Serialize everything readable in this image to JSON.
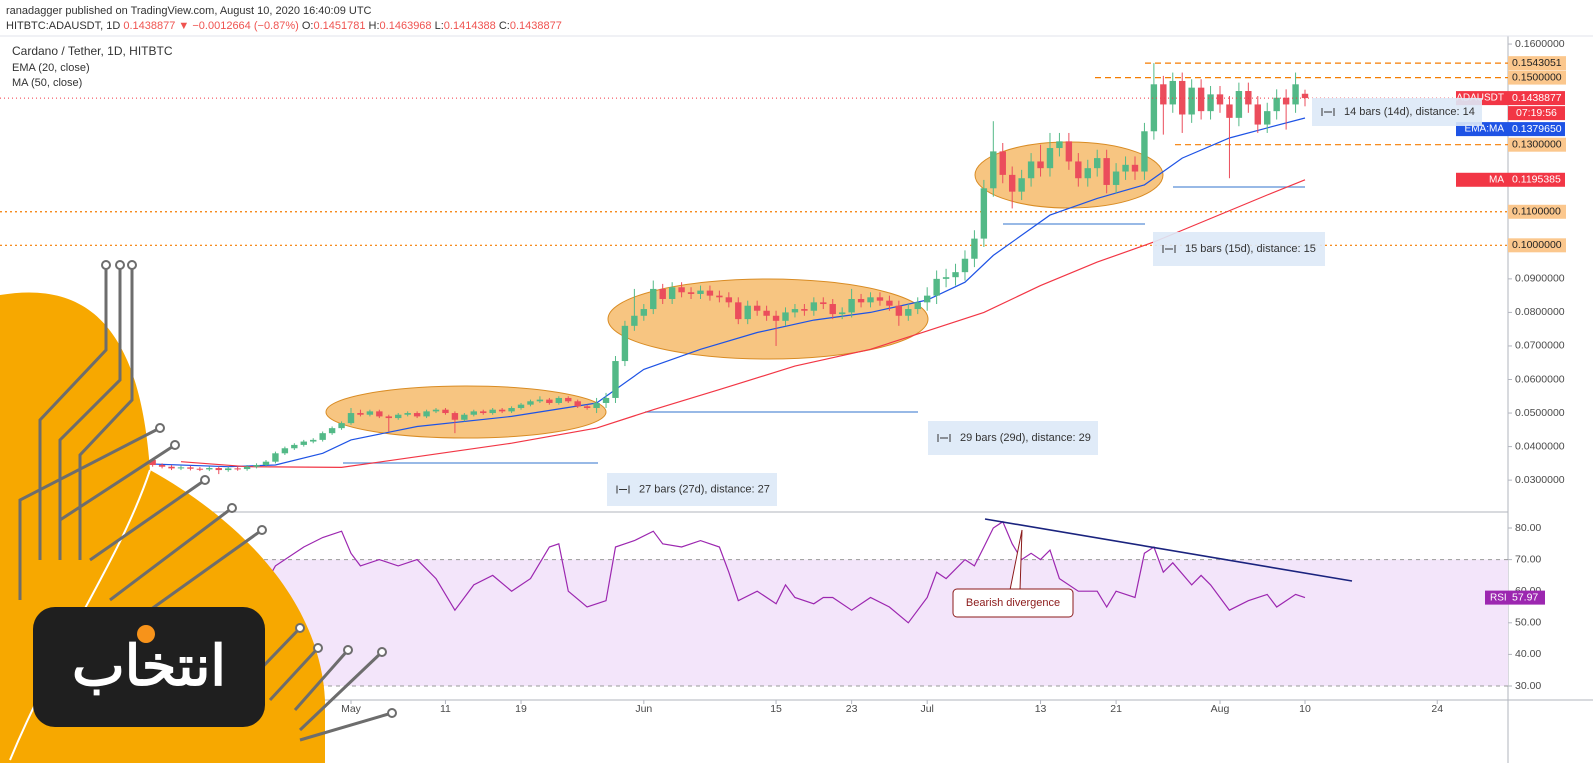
{
  "header": {
    "line1": "ranadagger published on TradingView.com, August 10, 2020 16:40:09 UTC",
    "symbol": "HITBTC:ADAUSDT, 1D",
    "last": "0.1438877",
    "arrow": "▼",
    "change": "−0.0012664 (−0.87%)",
    "ohlc": [
      {
        "label": "O:",
        "value": "0.1451781"
      },
      {
        "label": "H:",
        "value": "0.1463968"
      },
      {
        "label": "L:",
        "value": "0.1414388"
      },
      {
        "label": "C:",
        "value": "0.1438877"
      }
    ]
  },
  "watermark": "انتخاب",
  "chart_data": {
    "type": "candlestick",
    "title": "Cardano / Tether, 1D, HITBTC",
    "up_color": "#53b987",
    "down_color": "#eb4d5c",
    "open": [
      0.037,
      0.0365,
      0.036,
      0.0345,
      0.034,
      0.0335,
      0.0338,
      0.0334,
      0.0332,
      0.0336,
      0.033,
      0.0335,
      0.0333,
      0.034,
      0.0345,
      0.0355,
      0.038,
      0.0395,
      0.0405,
      0.0415,
      0.042,
      0.044,
      0.0455,
      0.047,
      0.05,
      0.0495,
      0.0505,
      0.049,
      0.0485,
      0.0495,
      0.05,
      0.049,
      0.0505,
      0.051,
      0.05,
      0.048,
      0.0495,
      0.0505,
      0.05,
      0.051,
      0.0505,
      0.0515,
      0.0525,
      0.0535,
      0.054,
      0.053,
      0.0545,
      0.0535,
      0.052,
      0.0515,
      0.053,
      0.0545,
      0.0655,
      0.076,
      0.079,
      0.081,
      0.087,
      0.084,
      0.0875,
      0.086,
      0.0855,
      0.0865,
      0.085,
      0.0845,
      0.083,
      0.078,
      0.082,
      0.0805,
      0.079,
      0.0775,
      0.08,
      0.081,
      0.0805,
      0.083,
      0.0825,
      0.0795,
      0.08,
      0.084,
      0.083,
      0.0845,
      0.0835,
      0.082,
      0.079,
      0.081,
      0.083,
      0.085,
      0.09,
      0.0905,
      0.092,
      0.096,
      0.102,
      0.117,
      0.128,
      0.121,
      0.116,
      0.12,
      0.125,
      0.123,
      0.129,
      0.131,
      0.125,
      0.12,
      0.123,
      0.126,
      0.118,
      0.122,
      0.124,
      0.122,
      0.134,
      0.148,
      0.142,
      0.149,
      0.139,
      0.147,
      0.14,
      0.145,
      0.142,
      0.138,
      0.146,
      0.142,
      0.136,
      0.14,
      0.144,
      0.142,
      0.1451781
    ],
    "high": [
      0.0375,
      0.037,
      0.0365,
      0.035,
      0.0345,
      0.0343,
      0.0343,
      0.0339,
      0.0341,
      0.0341,
      0.034,
      0.034,
      0.0345,
      0.035,
      0.036,
      0.0385,
      0.04,
      0.041,
      0.042,
      0.0425,
      0.0445,
      0.046,
      0.0475,
      0.0515,
      0.051,
      0.051,
      0.051,
      0.0495,
      0.05,
      0.0505,
      0.0505,
      0.051,
      0.0515,
      0.0515,
      0.0505,
      0.05,
      0.051,
      0.051,
      0.0515,
      0.0515,
      0.052,
      0.053,
      0.054,
      0.055,
      0.0545,
      0.055,
      0.055,
      0.054,
      0.0525,
      0.0545,
      0.056,
      0.067,
      0.0775,
      0.087,
      0.0825,
      0.0895,
      0.0885,
      0.089,
      0.089,
      0.0875,
      0.088,
      0.088,
      0.0865,
      0.086,
      0.0845,
      0.0835,
      0.0835,
      0.082,
      0.0805,
      0.0815,
      0.0825,
      0.0825,
      0.0845,
      0.0845,
      0.084,
      0.0815,
      0.087,
      0.0855,
      0.086,
      0.086,
      0.085,
      0.0835,
      0.0825,
      0.0845,
      0.0875,
      0.0925,
      0.093,
      0.0945,
      0.0985,
      0.1045,
      0.1195,
      0.137,
      0.1305,
      0.1235,
      0.1225,
      0.1275,
      0.13,
      0.1335,
      0.1335,
      0.1335,
      0.1275,
      0.1255,
      0.1285,
      0.1285,
      0.1245,
      0.1265,
      0.1265,
      0.1365,
      0.1543051,
      0.1505,
      0.1515,
      0.1515,
      0.1495,
      0.1495,
      0.1475,
      0.1475,
      0.1445,
      0.1485,
      0.1485,
      0.1445,
      0.1425,
      0.1465,
      0.1465,
      0.1515,
      0.1463968
    ],
    "low": [
      0.036,
      0.0355,
      0.034,
      0.0335,
      0.033,
      0.033,
      0.0329,
      0.0327,
      0.0327,
      0.0318,
      0.0325,
      0.0328,
      0.0328,
      0.0335,
      0.034,
      0.035,
      0.0375,
      0.039,
      0.04,
      0.041,
      0.0415,
      0.0435,
      0.045,
      0.0465,
      0.049,
      0.049,
      0.0485,
      0.0445,
      0.048,
      0.049,
      0.0485,
      0.0485,
      0.05,
      0.0495,
      0.044,
      0.0475,
      0.049,
      0.0495,
      0.0495,
      0.05,
      0.05,
      0.051,
      0.052,
      0.053,
      0.0525,
      0.0525,
      0.053,
      0.0515,
      0.051,
      0.05,
      0.0515,
      0.053,
      0.064,
      0.0745,
      0.0775,
      0.0795,
      0.0825,
      0.0825,
      0.0845,
      0.084,
      0.084,
      0.0835,
      0.083,
      0.0815,
      0.0765,
      0.0765,
      0.079,
      0.0775,
      0.07,
      0.076,
      0.0785,
      0.079,
      0.079,
      0.081,
      0.078,
      0.078,
      0.0785,
      0.0815,
      0.0815,
      0.082,
      0.0805,
      0.076,
      0.0775,
      0.0795,
      0.0805,
      0.0825,
      0.0875,
      0.088,
      0.0895,
      0.0935,
      0.0995,
      0.1145,
      0.1185,
      0.111,
      0.1135,
      0.1175,
      0.1205,
      0.1205,
      0.1265,
      0.1225,
      0.1175,
      0.1175,
      0.1205,
      0.1155,
      0.1155,
      0.1195,
      0.1195,
      0.1195,
      0.1315,
      0.133,
      0.1395,
      0.1335,
      0.1365,
      0.1375,
      0.1375,
      0.1395,
      0.12,
      0.1355,
      0.1395,
      0.1335,
      0.1335,
      0.1375,
      0.1345,
      0.1395,
      0.1414388
    ],
    "close": [
      0.0365,
      0.036,
      0.0345,
      0.034,
      0.0335,
      0.0338,
      0.0334,
      0.0332,
      0.0336,
      0.033,
      0.0335,
      0.0333,
      0.034,
      0.0345,
      0.0355,
      0.038,
      0.0395,
      0.0405,
      0.0415,
      0.042,
      0.044,
      0.0455,
      0.047,
      0.05,
      0.0495,
      0.0505,
      0.049,
      0.0485,
      0.0495,
      0.05,
      0.049,
      0.0505,
      0.051,
      0.05,
      0.048,
      0.0495,
      0.0505,
      0.05,
      0.051,
      0.0505,
      0.0515,
      0.0525,
      0.0535,
      0.054,
      0.053,
      0.0545,
      0.0535,
      0.052,
      0.0515,
      0.053,
      0.0545,
      0.0655,
      0.076,
      0.079,
      0.081,
      0.087,
      0.084,
      0.0875,
      0.086,
      0.0855,
      0.0865,
      0.085,
      0.0845,
      0.083,
      0.078,
      0.082,
      0.0805,
      0.079,
      0.0775,
      0.08,
      0.081,
      0.0805,
      0.083,
      0.0825,
      0.0795,
      0.08,
      0.084,
      0.083,
      0.0845,
      0.0835,
      0.082,
      0.079,
      0.081,
      0.083,
      0.085,
      0.09,
      0.0905,
      0.092,
      0.096,
      0.102,
      0.117,
      0.128,
      0.121,
      0.116,
      0.12,
      0.125,
      0.123,
      0.129,
      0.131,
      0.125,
      0.12,
      0.123,
      0.126,
      0.118,
      0.122,
      0.124,
      0.122,
      0.134,
      0.148,
      0.142,
      0.149,
      0.139,
      0.147,
      0.14,
      0.145,
      0.142,
      0.138,
      0.146,
      0.142,
      0.136,
      0.14,
      0.144,
      0.142,
      0.148,
      0.1438877
    ],
    "series": [
      {
        "name": "EMA (20, close)",
        "color": "#1e53e5",
        "x": [
          0,
          10,
          15,
          20,
          23,
          30,
          40,
          49,
          54,
          60,
          66,
          72,
          78,
          84,
          88,
          91,
          94,
          97,
          102,
          107,
          111,
          116,
          120,
          124
        ],
        "values": [
          0.035,
          0.034,
          0.0345,
          0.038,
          0.042,
          0.046,
          0.049,
          0.053,
          0.063,
          0.069,
          0.074,
          0.0777,
          0.08,
          0.0837,
          0.089,
          0.097,
          0.103,
          0.109,
          0.114,
          0.118,
          0.126,
          0.132,
          0.135,
          0.137965
        ]
      },
      {
        "name": "MA (50, close)",
        "color": "#f23645",
        "x": [
          5,
          12,
          22,
          30,
          40,
          49,
          55,
          62,
          70,
          78,
          84,
          90,
          96,
          102,
          108,
          114,
          120,
          124
        ],
        "values": [
          0.0355,
          0.034,
          0.0338,
          0.037,
          0.041,
          0.0455,
          0.051,
          0.057,
          0.064,
          0.069,
          0.0745,
          0.08,
          0.088,
          0.095,
          0.101,
          0.108,
          0.115,
          0.1195385
        ]
      }
    ],
    "xlim": [
      -14.16,
      145.49
    ],
    "xticks": [
      {
        "value": 23,
        "label": "May"
      },
      {
        "value": 33,
        "label": "11"
      },
      {
        "value": 41,
        "label": "19"
      },
      {
        "value": 54,
        "label": "Jun"
      },
      {
        "value": 68,
        "label": "15"
      },
      {
        "value": 76,
        "label": "23"
      },
      {
        "value": 84,
        "label": "Jul"
      },
      {
        "value": 96,
        "label": "13"
      },
      {
        "value": 104,
        "label": "21"
      },
      {
        "value": 115,
        "label": "Aug"
      },
      {
        "value": 124,
        "label": "10"
      },
      {
        "value": 138,
        "label": "24"
      }
    ],
    "ylim": [
      0.0205,
      0.1624
    ],
    "yticks": [
      {
        "value": 0.16,
        "label": "0.1600000"
      },
      {
        "value": 0.09,
        "label": "0.0900000"
      },
      {
        "value": 0.08,
        "label": "0.0800000"
      },
      {
        "value": 0.07,
        "label": "0.0700000"
      },
      {
        "value": 0.06,
        "label": "0.0600000"
      },
      {
        "value": 0.05,
        "label": "0.0500000"
      },
      {
        "value": 0.04,
        "label": "0.0400000"
      },
      {
        "value": 0.03,
        "label": "0.0300000"
      }
    ],
    "levels": [
      {
        "value": 0.1543051,
        "label": "0.1543051"
      },
      {
        "value": 0.15,
        "label": "0.1500000"
      },
      {
        "value": 0.13,
        "label": "0.1300000"
      },
      {
        "value": 0.11,
        "label": "0.1100000"
      },
      {
        "value": 0.1,
        "label": "0.1000000"
      }
    ],
    "tags": [
      {
        "name": "ADAUSDT",
        "value": 0.1438877,
        "label": "0.1438877",
        "color": "#f23645",
        "countdown": "07:19:56"
      },
      {
        "name": "EMA:MA",
        "value": 0.137965,
        "label": "0.1379650",
        "color": "#1e53e5"
      },
      {
        "name": "MA",
        "value": 0.1195385,
        "label": "0.1195385",
        "color": "#f23645"
      }
    ],
    "measures": [
      "14 bars (14d), distance: 14",
      "15 bars (15d), distance: 15",
      "29 bars (29d), distance: 29",
      "27 bars (27d), distance: 27"
    ],
    "rsi": {
      "name": "RSI",
      "color": "#9c27b0",
      "x": [
        0,
        3,
        6,
        9,
        12,
        15,
        18,
        20,
        22,
        23,
        24,
        26,
        28,
        30,
        32,
        34,
        36,
        38,
        40,
        42,
        44,
        45,
        46,
        48,
        50,
        51,
        52,
        53,
        55,
        56,
        58,
        60,
        62,
        63,
        64,
        66,
        68,
        69,
        70,
        72,
        73,
        74,
        76,
        78,
        80,
        82,
        84,
        85,
        86,
        88,
        89,
        90,
        91,
        92,
        93,
        94,
        95,
        96,
        97,
        98,
        100,
        102,
        103,
        104,
        106,
        107,
        108,
        109,
        110,
        112,
        113,
        114,
        116,
        118,
        120,
        121,
        122,
        123,
        124
      ],
      "values": [
        62,
        58,
        55,
        50,
        52,
        68,
        74,
        77,
        79,
        72,
        68,
        70,
        68,
        70,
        64,
        54,
        62,
        65,
        60,
        64,
        74,
        75,
        60,
        55,
        57,
        74,
        75,
        76,
        79,
        75,
        74,
        76,
        74,
        66,
        57,
        60,
        56,
        62,
        58,
        56,
        58,
        58,
        54,
        58,
        55,
        50,
        58,
        66,
        64,
        70,
        68,
        74,
        80,
        82,
        75,
        70,
        72,
        70,
        73,
        64,
        60,
        60,
        55,
        60,
        58,
        72,
        74,
        66,
        69,
        62,
        65,
        62,
        54,
        57,
        59,
        55,
        57,
        59,
        57.97
      ],
      "ylim": [
        25.57,
        85.06
      ],
      "yticks": [
        {
          "value": 80,
          "label": "80.00"
        },
        {
          "value": 70,
          "label": "70.00"
        },
        {
          "value": 60,
          "label": "60.00"
        },
        {
          "value": 50,
          "label": "50.00"
        },
        {
          "value": 40,
          "label": "40.00"
        },
        {
          "value": 30,
          "label": "30.00"
        }
      ],
      "band": [
        30,
        70
      ],
      "last": 57.97,
      "annotation": "Bearish divergence"
    }
  }
}
